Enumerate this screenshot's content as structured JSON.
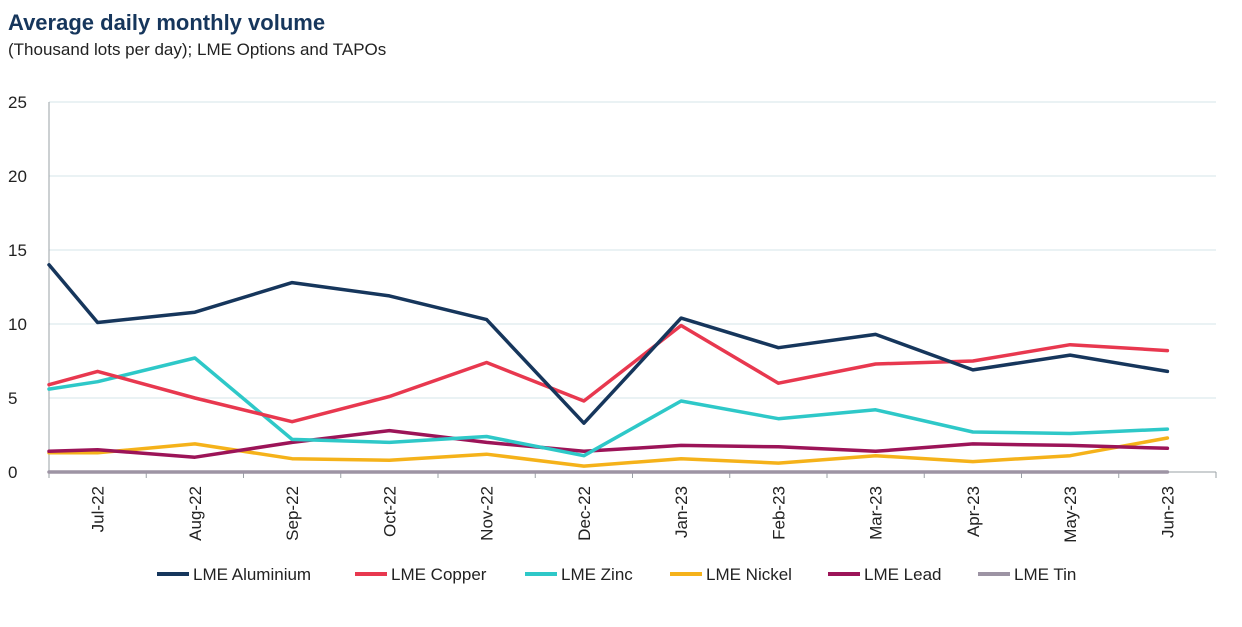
{
  "title": "Average daily monthly volume",
  "subtitle": "(Thousand lots per day); LME Options and TAPOs",
  "chart_data": {
    "type": "line",
    "categories": [
      "Jul-22",
      "Aug-22",
      "Sep-22",
      "Oct-22",
      "Nov-22",
      "Dec-22",
      "Jan-23",
      "Feb-23",
      "Mar-23",
      "Apr-23",
      "May-23",
      "Jun-23"
    ],
    "y_ticks": [
      "0",
      "5",
      "10",
      "15",
      "20",
      "25"
    ],
    "ylim": [
      0,
      25
    ],
    "grid": true,
    "legend_position": "bottom",
    "series": [
      {
        "name": "LME Aluminium",
        "color": "#16365c",
        "x": [
          0,
          0.5,
          1.5,
          2.5,
          3.5,
          4.5,
          5.5,
          6.5,
          7.5,
          8.5,
          9.5,
          10.5,
          11.5
        ],
        "values": [
          14.0,
          10.1,
          10.8,
          12.8,
          11.9,
          10.3,
          3.3,
          10.4,
          8.4,
          9.3,
          6.9,
          7.9,
          6.8
        ]
      },
      {
        "name": "LME Copper",
        "color": "#e8384f",
        "x": [
          0,
          0.5,
          1.5,
          2.5,
          3.5,
          4.5,
          5.5,
          6.5,
          7.5,
          8.5,
          9.5,
          10.5,
          11.5
        ],
        "values": [
          5.9,
          6.8,
          5.0,
          3.4,
          5.1,
          7.4,
          4.8,
          9.9,
          6.0,
          7.3,
          7.5,
          8.6,
          8.2
        ]
      },
      {
        "name": "LME Zinc",
        "color": "#2ec8c8",
        "x": [
          0,
          0.5,
          1.5,
          2.5,
          3.5,
          4.5,
          5.5,
          6.5,
          7.5,
          8.5,
          9.5,
          10.5,
          11.5
        ],
        "values": [
          5.6,
          6.1,
          7.7,
          2.2,
          2.0,
          2.4,
          1.1,
          4.8,
          3.6,
          4.2,
          2.7,
          2.6,
          2.9
        ]
      },
      {
        "name": "LME Nickel",
        "color": "#f5b21a",
        "x": [
          0,
          0.5,
          1.5,
          2.5,
          3.5,
          4.5,
          5.5,
          6.5,
          7.5,
          8.5,
          9.5,
          10.5,
          11.5
        ],
        "values": [
          1.3,
          1.3,
          1.9,
          0.9,
          0.8,
          1.2,
          0.4,
          0.9,
          0.6,
          1.1,
          0.7,
          1.1,
          2.3
        ]
      },
      {
        "name": "LME Lead",
        "color": "#9c1458",
        "x": [
          0,
          0.5,
          1.5,
          2.5,
          3.5,
          4.5,
          5.5,
          6.5,
          7.5,
          8.5,
          9.5,
          10.5,
          11.5
        ],
        "values": [
          1.4,
          1.5,
          1.0,
          2.0,
          2.8,
          2.0,
          1.4,
          1.8,
          1.7,
          1.4,
          1.9,
          1.8,
          1.6
        ]
      },
      {
        "name": "LME Tin",
        "color": "#9d94a4",
        "x": [
          0,
          0.5,
          1.5,
          2.5,
          3.5,
          4.5,
          5.5,
          6.5,
          7.5,
          8.5,
          9.5,
          10.5,
          11.5
        ],
        "values": [
          0,
          0,
          0,
          0,
          0,
          0,
          0,
          0,
          0,
          0,
          0,
          0,
          0
        ]
      }
    ]
  }
}
